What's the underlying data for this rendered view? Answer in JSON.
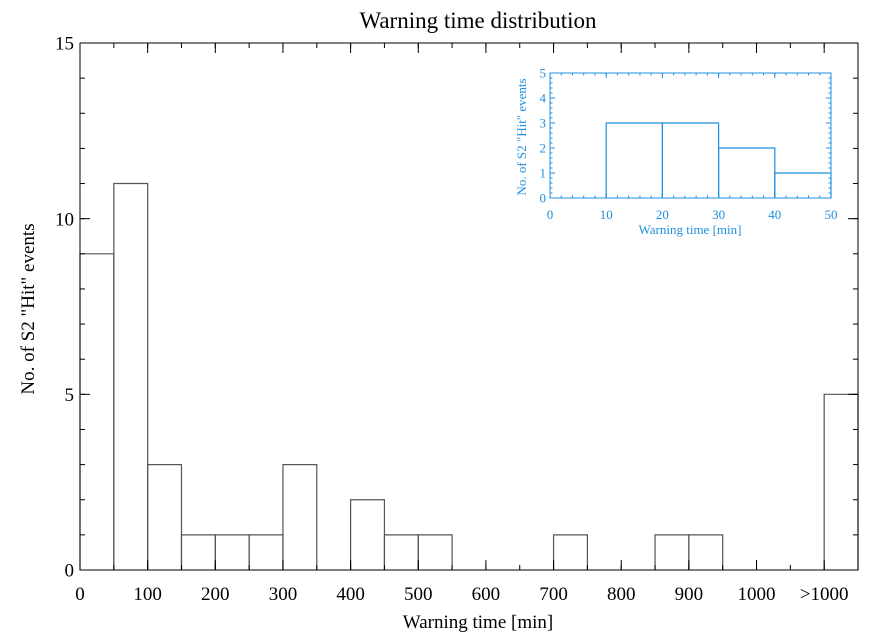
{
  "chart_data": [
    {
      "type": "histogram",
      "title": "Warning time distribution",
      "xlabel": "Warning time [min]",
      "ylabel": "No. of S2 \"Hit\" events",
      "xlim": [
        0,
        1150
      ],
      "ylim": [
        0,
        15
      ],
      "xticks": [
        {
          "value": 0,
          "label": "0"
        },
        {
          "value": 100,
          "label": "100"
        },
        {
          "value": 200,
          "label": "200"
        },
        {
          "value": 300,
          "label": "300"
        },
        {
          "value": 400,
          "label": "400"
        },
        {
          "value": 500,
          "label": "500"
        },
        {
          "value": 600,
          "label": "600"
        },
        {
          "value": 700,
          "label": "700"
        },
        {
          "value": 800,
          "label": "800"
        },
        {
          "value": 900,
          "label": "900"
        },
        {
          "value": 1000,
          "label": "1000"
        },
        {
          "value": 1100,
          "label": ">1000"
        }
      ],
      "yticks": [
        {
          "value": 0,
          "label": "0"
        },
        {
          "value": 5,
          "label": "5"
        },
        {
          "value": 10,
          "label": "10"
        },
        {
          "value": 15,
          "label": "15"
        }
      ],
      "bin_width": 50,
      "bins": [
        {
          "x0": 0,
          "x1": 50,
          "count": 9
        },
        {
          "x0": 50,
          "x1": 100,
          "count": 11
        },
        {
          "x0": 100,
          "x1": 150,
          "count": 3
        },
        {
          "x0": 150,
          "x1": 200,
          "count": 1
        },
        {
          "x0": 200,
          "x1": 250,
          "count": 1
        },
        {
          "x0": 250,
          "x1": 300,
          "count": 1
        },
        {
          "x0": 300,
          "x1": 350,
          "count": 3
        },
        {
          "x0": 350,
          "x1": 400,
          "count": 0
        },
        {
          "x0": 400,
          "x1": 450,
          "count": 2
        },
        {
          "x0": 450,
          "x1": 500,
          "count": 1
        },
        {
          "x0": 500,
          "x1": 550,
          "count": 1
        },
        {
          "x0": 550,
          "x1": 600,
          "count": 0
        },
        {
          "x0": 600,
          "x1": 650,
          "count": 0
        },
        {
          "x0": 650,
          "x1": 700,
          "count": 0
        },
        {
          "x0": 700,
          "x1": 750,
          "count": 1
        },
        {
          "x0": 750,
          "x1": 800,
          "count": 0
        },
        {
          "x0": 800,
          "x1": 850,
          "count": 0
        },
        {
          "x0": 850,
          "x1": 900,
          "count": 1
        },
        {
          "x0": 900,
          "x1": 950,
          "count": 1
        },
        {
          "x0": 950,
          "x1": 1000,
          "count": 0
        },
        {
          "x0": 1000,
          "x1": 1050,
          "count": 0
        },
        {
          "x0": 1050,
          "x1": 1100,
          "count": 0
        },
        {
          "x0": 1100,
          "x1": 1150,
          "count": 5
        }
      ],
      "line_color": "#555555",
      "axis_color": "#000000"
    },
    {
      "type": "histogram",
      "title": "",
      "xlabel": "Warning time [min]",
      "ylabel": "No. of S2 \"Hit\" events",
      "xlim": [
        0,
        50
      ],
      "ylim": [
        0,
        5
      ],
      "xticks": [
        0,
        10,
        20,
        30,
        40,
        50
      ],
      "yticks": [
        0,
        1,
        2,
        3,
        4,
        5
      ],
      "bin_width": 10,
      "bins": [
        {
          "x0": 0,
          "x1": 10,
          "count": 0
        },
        {
          "x0": 10,
          "x1": 20,
          "count": 3
        },
        {
          "x0": 20,
          "x1": 30,
          "count": 3
        },
        {
          "x0": 30,
          "x1": 40,
          "count": 2
        },
        {
          "x0": 40,
          "x1": 50,
          "count": 1
        }
      ],
      "color": "#1e90e0"
    }
  ]
}
